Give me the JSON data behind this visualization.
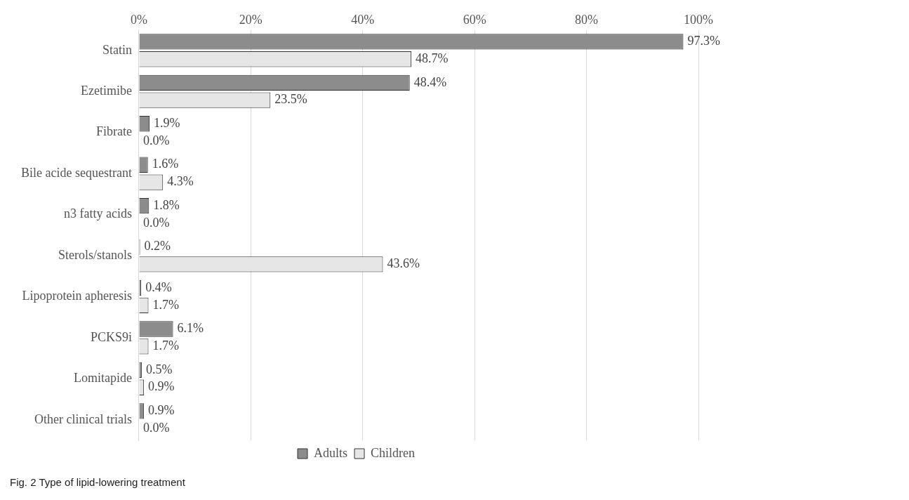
{
  "chart_data": {
    "type": "bar",
    "orientation": "horizontal",
    "categories": [
      "Statin",
      "Ezetimibe",
      "Fibrate",
      "Bile acide sequestrant",
      "n3 fatty acids",
      "Sterols/stanols",
      "Lipoprotein apheresis",
      "PCKS9i",
      "Lomitapide",
      "Other clinical trials"
    ],
    "series": [
      {
        "name": "Adults",
        "color": "#8c8c8c",
        "values": [
          97.3,
          48.4,
          1.9,
          1.6,
          1.8,
          0.2,
          0.4,
          6.1,
          0.5,
          0.9
        ],
        "value_labels": [
          "97.3%",
          "48.4%",
          "1.9%",
          "1.6%",
          "1.8%",
          "0.2%",
          "0.4%",
          "6.1%",
          "0.5%",
          "0.9%"
        ]
      },
      {
        "name": "Children",
        "color": "#e6e6e6",
        "values": [
          48.7,
          23.5,
          0.0,
          4.3,
          0.0,
          43.6,
          1.7,
          1.7,
          0.9,
          0.0
        ],
        "value_labels": [
          "48.7%",
          "23.5%",
          "0.0%",
          "4.3%",
          "0.0%",
          "43.6%",
          "1.7%",
          "1.7%",
          "0.9%",
          "0.0%"
        ]
      }
    ],
    "xlim": [
      0,
      100
    ],
    "xticks": [
      {
        "value": 0,
        "label": "0%"
      },
      {
        "value": 20,
        "label": "20%"
      },
      {
        "value": 40,
        "label": "40%"
      },
      {
        "value": 60,
        "label": "60%"
      },
      {
        "value": 80,
        "label": "80%"
      },
      {
        "value": 100,
        "label": "100%"
      }
    ],
    "grid": "x",
    "legend": "bottom",
    "annotations": [
      "Fig. 2 Type of lipid-lowering treatment"
    ]
  }
}
